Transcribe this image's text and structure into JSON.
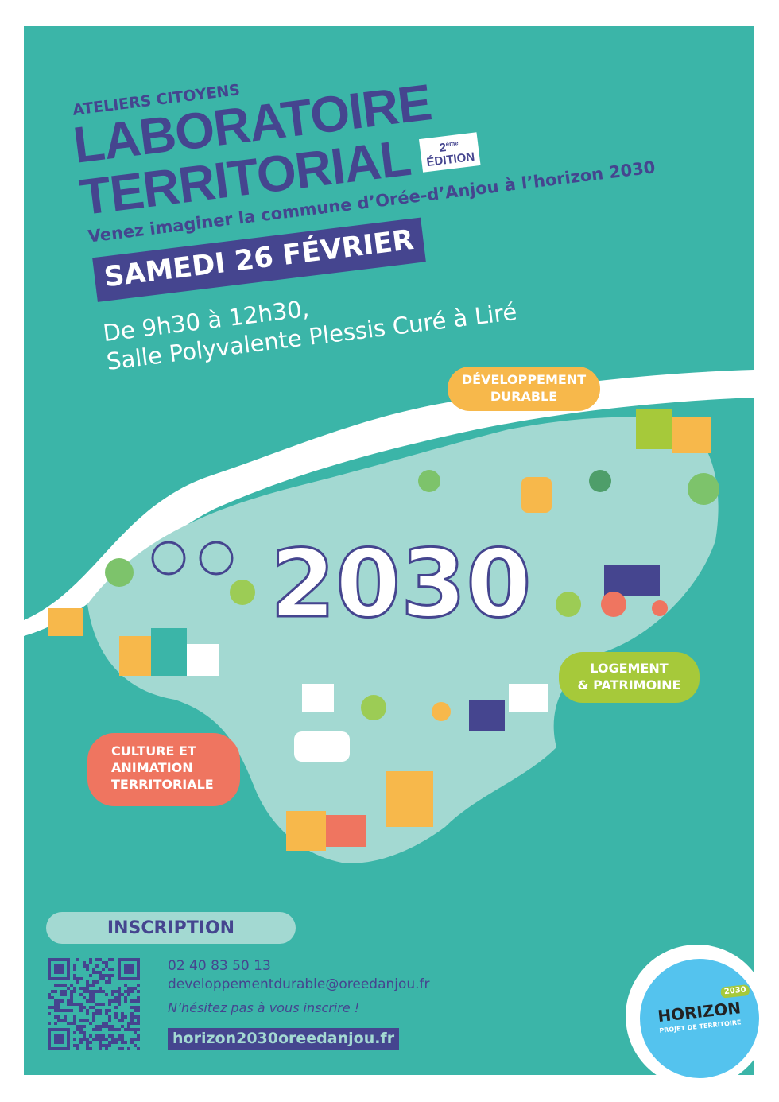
{
  "header": {
    "pretitle": "ATELIERS CITOYENS",
    "title_line1": "LABORATOIRE",
    "title_line2": "TERRITORIAL",
    "edition_number": "2",
    "edition_suffix": "ème",
    "edition_label": "ÉDITION",
    "subtitle": "Venez imaginer la commune d’Orée-d’Anjou à l’horizon 2030",
    "date": "SAMEDI 26 FÉVRIER",
    "time": "De 9h30 à 12h30,",
    "venue": "Salle Polyvalente Plessis Curé à Liré"
  },
  "map": {
    "year": "2030",
    "themes": [
      {
        "line1": "DÉVELOPPEMENT",
        "line2": "DURABLE",
        "color": "#f7b84b"
      },
      {
        "line1": "LOGEMENT",
        "line2": "& PATRIMOINE",
        "color": "#a6c93a"
      },
      {
        "line1": "CULTURE ET",
        "line2": "ANIMATION",
        "line3": "TERRITORIALE",
        "color": "#ef7560"
      }
    ]
  },
  "registration": {
    "heading": "INSCRIPTION",
    "phone": "02 40 83 50 13",
    "email": "developpementdurable@oreedanjou.fr",
    "note": "N’hésitez pas à vous inscrire !",
    "website": "horizon2030oreedanjou.fr"
  },
  "logo": {
    "badge": "2030",
    "name": "HORIZON",
    "tagline": "PROJET DE TERRITOIRE"
  },
  "colors": {
    "background": "#3bb5a8",
    "primary": "#45458f",
    "map": "#a3d9d2"
  }
}
